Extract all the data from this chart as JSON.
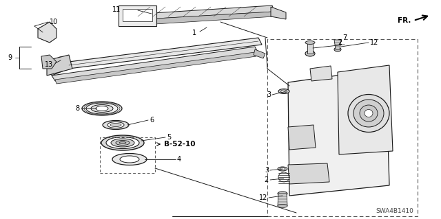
{
  "bg_color": "#ffffff",
  "line_color": "#1a1a1a",
  "fig_width": 6.4,
  "fig_height": 3.19,
  "dpi": 100,
  "watermark": "SWA4B1410",
  "fr_label": "FR.",
  "annotation_text": "B-52-10"
}
